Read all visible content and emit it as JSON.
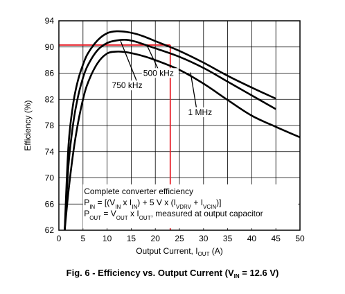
{
  "chart_data": {
    "type": "line",
    "xlabel": {
      "main": "Output Current, I",
      "sub": "OUT",
      "tail": " (A)"
    },
    "ylabel": "Efficiency (%)",
    "xlim": [
      0,
      50
    ],
    "ylim": [
      62,
      94
    ],
    "xticks": [
      0,
      5,
      10,
      15,
      20,
      25,
      30,
      35,
      40,
      45,
      50
    ],
    "yticks": [
      62,
      66,
      70,
      74,
      78,
      82,
      86,
      90,
      94
    ],
    "grid": true,
    "series": [
      {
        "name": "750 kHz",
        "points": [
          [
            1.2,
            62
          ],
          [
            2,
            75
          ],
          [
            3,
            81.5
          ],
          [
            4,
            85
          ],
          [
            5,
            87.3
          ],
          [
            6,
            89
          ],
          [
            8,
            91
          ],
          [
            10,
            92.1
          ],
          [
            12,
            92.4
          ],
          [
            14,
            92.3
          ],
          [
            16,
            92
          ],
          [
            18,
            91.5
          ],
          [
            20,
            90.9
          ],
          [
            25,
            89.4
          ],
          [
            30,
            87.6
          ],
          [
            35,
            85.6
          ],
          [
            40,
            83.8
          ],
          [
            45,
            82.1
          ]
        ]
      },
      {
        "name": "500 kHz",
        "points": [
          [
            1.2,
            62
          ],
          [
            2,
            72
          ],
          [
            3,
            78.5
          ],
          [
            4,
            82.5
          ],
          [
            5,
            85.3
          ],
          [
            6,
            87.2
          ],
          [
            8,
            89.5
          ],
          [
            10,
            90.6
          ],
          [
            12,
            91
          ],
          [
            14,
            91.1
          ],
          [
            16,
            90.8
          ],
          [
            18,
            90.3
          ],
          [
            20,
            89.8
          ],
          [
            25,
            88.5
          ],
          [
            30,
            86.8
          ],
          [
            35,
            84.7
          ],
          [
            40,
            82.6
          ],
          [
            45,
            80.5
          ]
        ]
      },
      {
        "name": "1 MHz",
        "points": [
          [
            1.2,
            62
          ],
          [
            2,
            68
          ],
          [
            3,
            74
          ],
          [
            4,
            78.5
          ],
          [
            5,
            82
          ],
          [
            6,
            84.5
          ],
          [
            8,
            87.5
          ],
          [
            10,
            89
          ],
          [
            12,
            89.3
          ],
          [
            14,
            89.2
          ],
          [
            16,
            88.9
          ],
          [
            18,
            88.5
          ],
          [
            20,
            88
          ],
          [
            25,
            86.5
          ],
          [
            30,
            84.4
          ],
          [
            35,
            81.9
          ],
          [
            40,
            79.5
          ],
          [
            45,
            77.8
          ],
          [
            50,
            76.2
          ]
        ]
      }
    ],
    "series_labels": [
      {
        "text": "750 kHz",
        "pos": [
          11,
          83.7
        ],
        "leader": [
          [
            16.4,
            84.3
          ],
          [
            12.8,
            90.9
          ]
        ]
      },
      {
        "text": "500 kHz",
        "pos": [
          17.5,
          85.6
        ],
        "leader": [
          [
            20.8,
            86.3
          ],
          [
            18.3,
            90.2
          ]
        ]
      },
      {
        "text": "1 MHz",
        "pos": [
          26.8,
          79.6
        ],
        "leader": [
          [
            28.5,
            80.8
          ],
          [
            27.3,
            86.1
          ]
        ]
      }
    ],
    "markers": {
      "h_at": 90.3,
      "v_at": 23.1,
      "color": "#e8202a"
    },
    "annotation": [
      {
        "parts": [
          {
            "t": "Complete converter efficiency"
          }
        ]
      },
      {
        "parts": [
          {
            "t": "P"
          },
          {
            "t": "IN",
            "sub": true
          },
          {
            "t": " = [(V"
          },
          {
            "t": "IN",
            "sub": true
          },
          {
            "t": " x I"
          },
          {
            "t": "IN",
            "sub": true
          },
          {
            "t": ") + 5 V x (I"
          },
          {
            "t": "VDRV",
            "sub": true
          },
          {
            "t": " + I"
          },
          {
            "t": "VCIN",
            "sub": true
          },
          {
            "t": ")]"
          }
        ]
      },
      {
        "parts": [
          {
            "t": "P"
          },
          {
            "t": "OUT",
            "sub": true
          },
          {
            "t": " = V"
          },
          {
            "t": "OUT",
            "sub": true
          },
          {
            "t": " x I"
          },
          {
            "t": "OUT",
            "sub": true
          },
          {
            "t": ", measured at output capacitor"
          }
        ]
      }
    ],
    "caption": {
      "main": "Fig. 6 - Efficiency vs. Output Current (V",
      "sub": "IN",
      "tail": " = 12.6 V)"
    }
  }
}
